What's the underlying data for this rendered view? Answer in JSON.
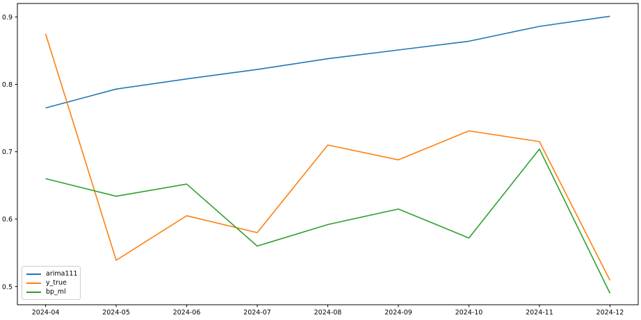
{
  "figure": {
    "background": "#ffffff",
    "axis_color": "#000000",
    "legend_border_color": "#cccccc"
  },
  "chart_data": {
    "type": "line",
    "title": "",
    "xlabel": "",
    "ylabel": "",
    "grid": false,
    "x": [
      "2024-04",
      "2024-05",
      "2024-06",
      "2024-07",
      "2024-08",
      "2024-09",
      "2024-10",
      "2024-11",
      "2024-12"
    ],
    "series": [
      {
        "name": "arima111",
        "color": "#1f77b4",
        "values": [
          0.765,
          0.793,
          0.808,
          0.822,
          0.838,
          0.851,
          0.864,
          0.886,
          0.901
        ]
      },
      {
        "name": "y_true",
        "color": "#ff7f0e",
        "values": [
          0.875,
          0.539,
          0.605,
          0.58,
          0.71,
          0.688,
          0.731,
          0.715,
          0.509
        ]
      },
      {
        "name": "bp_ml",
        "color": "#2ca02c",
        "values": [
          0.66,
          0.634,
          0.652,
          0.56,
          0.592,
          0.615,
          0.572,
          0.704,
          0.49
        ]
      }
    ],
    "y_ticks": [
      "0.5",
      "0.6",
      "0.7",
      "0.8",
      "0.9"
    ],
    "xlim": [
      -0.4,
      8.4
    ],
    "ylim": [
      0.473,
      0.92
    ],
    "legend": {
      "position": "lower-left",
      "frame": true
    }
  }
}
